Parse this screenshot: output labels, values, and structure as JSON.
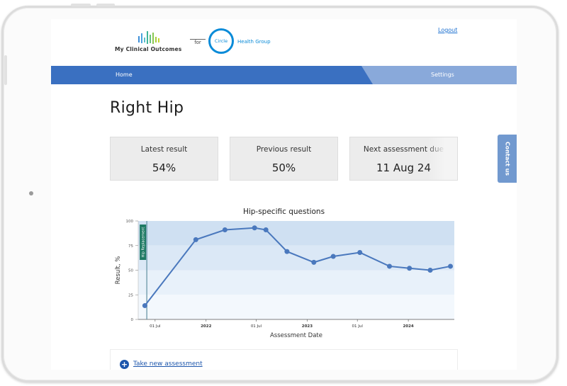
{
  "header": {
    "logo_text": "My Clinical Outcomes",
    "for_text": "for",
    "partner_logo_text": "Circle",
    "partner_name": "Health Group",
    "logout_label": "Logout"
  },
  "nav": {
    "home_label": "Home",
    "settings_label": "Settings"
  },
  "page": {
    "title": "Right Hip"
  },
  "cards": [
    {
      "label": "Latest result",
      "value": "54%"
    },
    {
      "label": "Previous result",
      "value": "50%"
    },
    {
      "label": "Next assessment due",
      "value": "11 Aug 24"
    }
  ],
  "contact_label": "Contact us",
  "chart_data": {
    "type": "line",
    "title": "Hip-specific questions",
    "xlabel": "Assessment Date",
    "ylabel": "Result, %",
    "ylim": [
      0,
      100
    ],
    "yticks": [
      0,
      25,
      50,
      75,
      100
    ],
    "xlim": [
      "2021-05-01",
      "2024-06-15"
    ],
    "xticks": [
      {
        "date": "2021-07-01",
        "label": "01 Jul"
      },
      {
        "date": "2022-01-01",
        "label": "2022"
      },
      {
        "date": "2022-07-01",
        "label": "01 Jul"
      },
      {
        "date": "2023-01-01",
        "label": "2023"
      },
      {
        "date": "2023-07-01",
        "label": "01 Jul"
      },
      {
        "date": "2024-01-01",
        "label": "2024"
      }
    ],
    "marker": {
      "label": "Hip Replacement",
      "date": "2021-06-01"
    },
    "series": [
      {
        "color": "#4a78bd",
        "points": [
          {
            "x": "2021-05-25",
            "y": 14
          },
          {
            "x": "2021-11-25",
            "y": 81
          },
          {
            "x": "2022-03-10",
            "y": 91
          },
          {
            "x": "2022-06-25",
            "y": 93
          },
          {
            "x": "2022-08-05",
            "y": 91
          },
          {
            "x": "2022-10-20",
            "y": 69
          },
          {
            "x": "2023-01-25",
            "y": 58
          },
          {
            "x": "2023-04-05",
            "y": 64
          },
          {
            "x": "2023-07-10",
            "y": 68
          },
          {
            "x": "2023-10-25",
            "y": 54
          },
          {
            "x": "2024-01-05",
            "y": 52
          },
          {
            "x": "2024-03-20",
            "y": 50
          },
          {
            "x": "2024-06-01",
            "y": 54
          }
        ]
      }
    ],
    "bands": [
      {
        "from": 75,
        "to": 100,
        "color": "#cfe0f2"
      },
      {
        "from": 50,
        "to": 75,
        "color": "#dbe8f6"
      },
      {
        "from": 25,
        "to": 50,
        "color": "#e8f1fa"
      },
      {
        "from": 0,
        "to": 25,
        "color": "#f3f8fd"
      }
    ],
    "grid": false,
    "legend": "none"
  },
  "assessment": {
    "link_label": "Take new assessment"
  }
}
